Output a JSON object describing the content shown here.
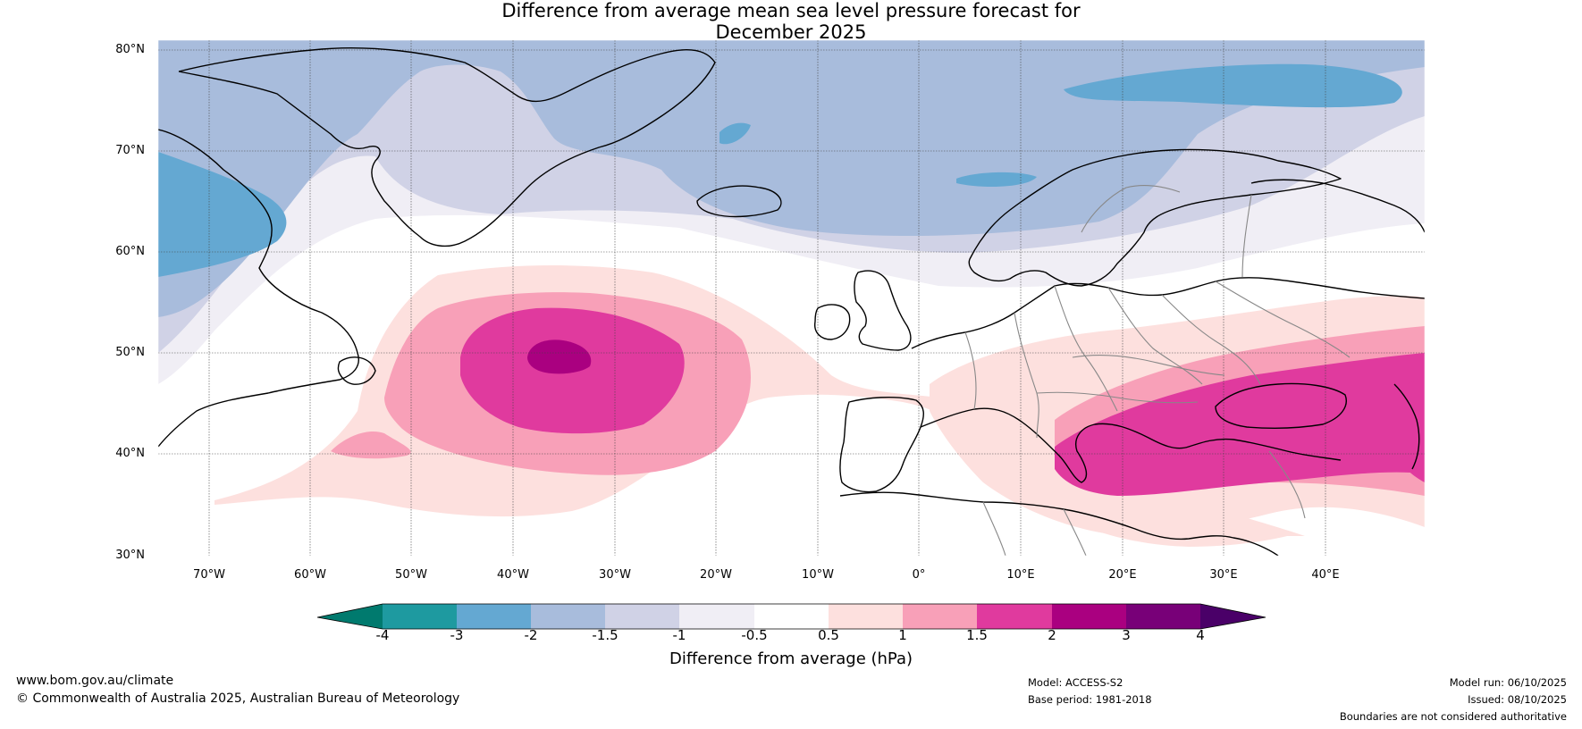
{
  "title_line1": "Difference from average mean sea level pressure forecast for",
  "title_line2": "December 2025",
  "lat_labels": [
    "80°N",
    "70°N",
    "60°N",
    "50°N",
    "40°N",
    "30°N"
  ],
  "lon_labels": [
    "70°W",
    "60°W",
    "50°W",
    "40°W",
    "30°W",
    "20°W",
    "10°W",
    "0°",
    "10°E",
    "20°E",
    "30°E",
    "40°E"
  ],
  "colorbar": {
    "ticks": [
      "-4",
      "-3",
      "-2",
      "-1.5",
      "-1",
      "-0.5",
      "0.5",
      "1",
      "1.5",
      "2",
      "3",
      "4"
    ],
    "colors": {
      "below_-4": "#007a6e",
      "-4_-3": "#1e9aa0",
      "-3_-2": "#64a8d2",
      "-2_-1.5": "#a8bcdc",
      "-1.5_-1": "#d0d2e6",
      "-1_-0.5": "#f0eef5",
      "-0.5_0.5": "#ffffff",
      "0.5_1": "#fde0de",
      "1_1.5": "#f8a0b8",
      "1.5_2": "#e03a9e",
      "2_3": "#aa0080",
      "3_4": "#780078",
      "above_4": "#4a0068"
    },
    "label": "Difference from average (hPa)"
  },
  "footer": {
    "url": "www.bom.gov.au/climate",
    "copyright": "© Commonwealth of Australia 2025, Australian Bureau of Meteorology",
    "model": "Model: ACCESS-S2",
    "base_period": "Base period: 1981-2018",
    "model_run": "Model run: 06/10/2025",
    "issued": "Issued: 08/10/2025",
    "disclaimer": "Boundaries are not considered authoritative"
  }
}
